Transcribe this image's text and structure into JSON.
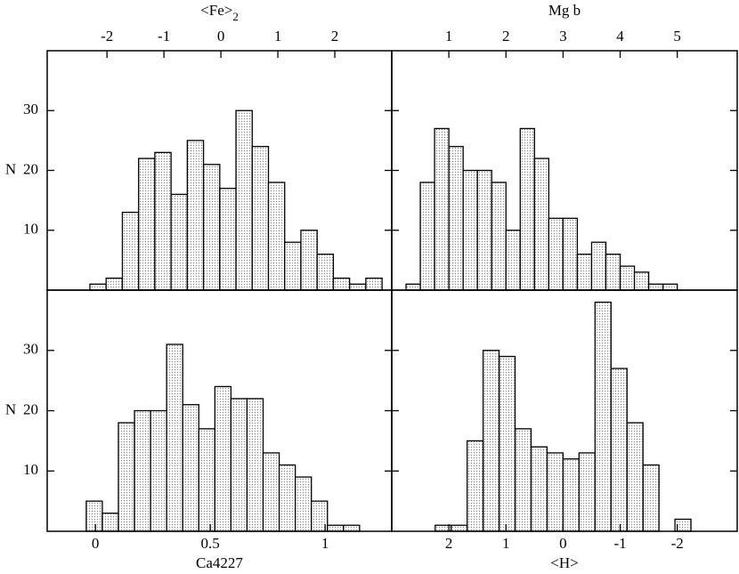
{
  "chart_data": [
    {
      "type": "histogram",
      "xlabel": "<Fe>",
      "xlabel_sub": "2",
      "ylabel": "N",
      "xaxis_position": "top",
      "show_ytick_labels": true,
      "bins": [
        -2.3,
        -2.015,
        -1.73,
        -1.445,
        -1.16,
        -0.875,
        -0.59,
        -0.305,
        -0.02,
        0.265,
        0.55,
        0.835,
        1.12,
        1.405,
        1.69,
        1.975,
        2.26,
        2.545,
        2.83
      ],
      "values": [
        1,
        2,
        13,
        22,
        23,
        16,
        25,
        21,
        17,
        30,
        24,
        18,
        8,
        10,
        6,
        2,
        1,
        2
      ],
      "xlim": [
        -3.05,
        3.0
      ],
      "xticks": [
        -2,
        -1,
        0,
        1,
        2
      ],
      "ylim": [
        0,
        40
      ],
      "yticks": [
        10,
        20,
        30
      ],
      "color": "#8a8a8a"
    },
    {
      "type": "histogram",
      "xlabel": "Mg b",
      "xaxis_position": "top",
      "show_ytick_labels": false,
      "bins": [
        0.25,
        0.5,
        0.75,
        1.0,
        1.25,
        1.5,
        1.75,
        2.0,
        2.25,
        2.5,
        2.75,
        3.0,
        3.25,
        3.5,
        3.75,
        4.0,
        4.25,
        4.5,
        4.75,
        5.0
      ],
      "values": [
        1,
        18,
        27,
        24,
        20,
        20,
        18,
        10,
        27,
        22,
        12,
        12,
        6,
        8,
        6,
        4,
        3,
        1,
        1
      ],
      "xlim": [
        0,
        6.05
      ],
      "xticks": [
        1,
        2,
        3,
        4,
        5
      ],
      "ylim": [
        0,
        40
      ],
      "yticks": [
        10,
        20,
        30
      ],
      "color": "#8a8a8a"
    },
    {
      "type": "histogram",
      "xlabel": "Ca4227",
      "ylabel": "N",
      "xaxis_position": "bottom",
      "show_ytick_labels": true,
      "bins": [
        -0.04,
        0.03,
        0.1,
        0.17,
        0.24,
        0.31,
        0.38,
        0.45,
        0.52,
        0.59,
        0.66,
        0.73,
        0.8,
        0.87,
        0.94,
        1.01,
        1.08,
        1.15
      ],
      "values": [
        5,
        3,
        18,
        20,
        20,
        31,
        21,
        17,
        24,
        22,
        22,
        13,
        11,
        9,
        5,
        1,
        1
      ],
      "xlim": [
        -0.21,
        1.29
      ],
      "xticks": [
        0,
        0.5,
        1
      ],
      "ylim": [
        0,
        40
      ],
      "yticks": [
        10,
        20,
        30
      ],
      "color": "#8a8a8a"
    },
    {
      "type": "histogram",
      "xlabel": "<H>",
      "xaxis_position": "bottom",
      "show_ytick_labels": false,
      "bins": [
        -2.24,
        -1.96,
        -1.68,
        -1.4,
        -1.12,
        -0.84,
        -0.56,
        -0.28,
        0,
        0.28,
        0.56,
        0.84,
        1.12,
        1.4,
        1.68,
        1.96,
        2.24
      ],
      "values": [
        2,
        0,
        11,
        18,
        27,
        38,
        13,
        12,
        13,
        14,
        17,
        29,
        30,
        15,
        1,
        1
      ],
      "xlim": [
        3.0,
        -3.05
      ],
      "xticks": [
        2,
        1,
        0,
        -1,
        -2
      ],
      "ylim": [
        0,
        40
      ],
      "yticks": [
        10,
        20,
        30
      ],
      "color": "#8a8a8a"
    }
  ]
}
